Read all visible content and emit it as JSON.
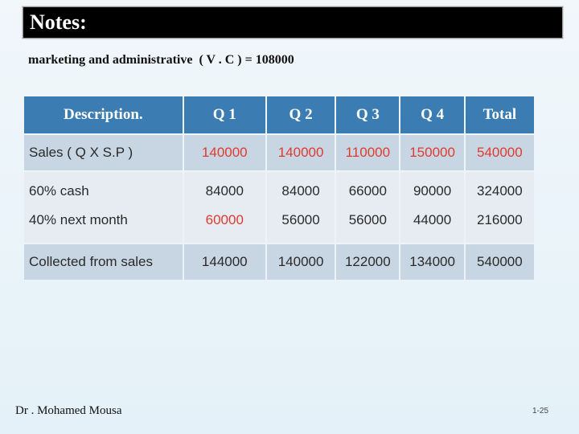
{
  "slide": {
    "title": "Notes:",
    "subtitle": "marketing and administrative  ( V . C ) = 108000",
    "footer_name": "Dr . Mohamed Mousa",
    "slide_number": "1-25"
  },
  "table": {
    "headers": [
      "Description.",
      "Q 1",
      "Q 2",
      "Q 3",
      "Q 4",
      "Total"
    ],
    "sales": {
      "label": "Sales ( Q X S.P )",
      "values": [
        "140000",
        "140000",
        "110000",
        "150000",
        "540000"
      ]
    },
    "cash": {
      "label": "60% cash",
      "values": [
        "84000",
        "84000",
        "66000",
        "90000",
        "324000"
      ]
    },
    "next_month": {
      "label": "40% next month",
      "values": [
        "60000",
        "56000",
        "56000",
        "44000",
        "216000"
      ]
    },
    "collected": {
      "label": "Collected from sales",
      "values": [
        "144000",
        "140000",
        "122000",
        "134000",
        "540000"
      ]
    }
  },
  "colors": {
    "header_bg": "#3b7db3",
    "row_dark": "#c8d6e3",
    "row_light": "#e6ecf2",
    "highlight_red": "#e03a2f"
  }
}
